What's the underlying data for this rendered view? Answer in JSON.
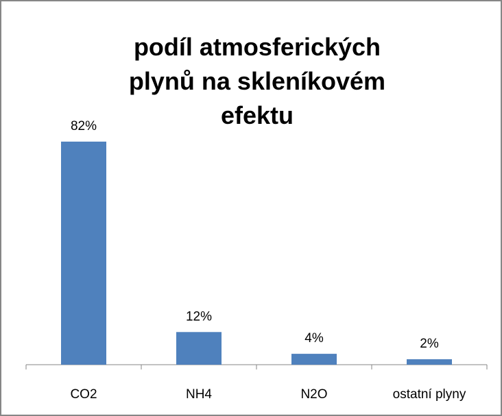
{
  "chart_data": {
    "type": "bar",
    "title": "podíl atmosferických plynů na skleníkovém efektu",
    "categories": [
      "CO2",
      "NH4",
      "N2O",
      "ostatní plyny"
    ],
    "values": [
      82,
      12,
      4,
      2
    ],
    "value_labels": [
      "82%",
      "12%",
      "4%",
      "2%"
    ],
    "color": "#4f81bd"
  }
}
